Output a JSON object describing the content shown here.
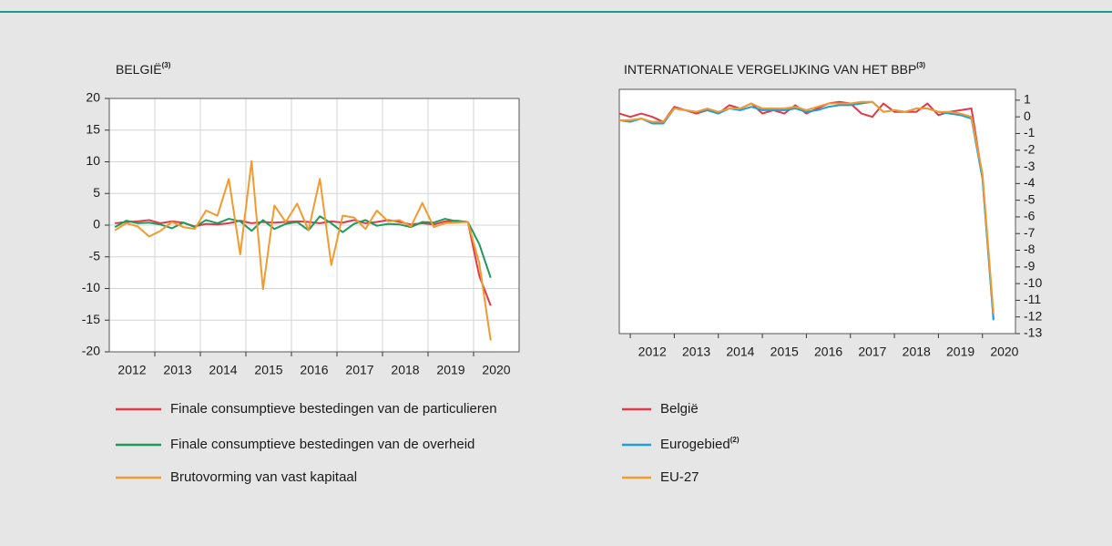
{
  "chart_data": [
    {
      "type": "line",
      "title": "BELGIË",
      "title_sup": "(3)",
      "y_axis_side": "left",
      "grid": true,
      "xlim": [
        2012,
        2021
      ],
      "xticks": [
        2012,
        2013,
        2014,
        2015,
        2016,
        2017,
        2018,
        2019,
        2020
      ],
      "ylim": [
        -20,
        20
      ],
      "yticks": [
        -20,
        -15,
        -10,
        -5,
        0,
        5,
        10,
        15,
        20
      ],
      "x": [
        2012.125,
        2012.375,
        2012.625,
        2012.875,
        2013.125,
        2013.375,
        2013.625,
        2013.875,
        2014.125,
        2014.375,
        2014.625,
        2014.875,
        2015.125,
        2015.375,
        2015.625,
        2015.875,
        2016.125,
        2016.375,
        2016.625,
        2016.875,
        2017.125,
        2017.375,
        2017.625,
        2017.875,
        2018.125,
        2018.375,
        2018.625,
        2018.875,
        2019.125,
        2019.375,
        2019.625,
        2019.875,
        2020.125,
        2020.375
      ],
      "series": [
        {
          "name": "Finale consumptieve bestedingen van de particulieren",
          "color": "#e03a48",
          "values": [
            0.3,
            0.5,
            0.6,
            0.8,
            0.3,
            0.6,
            0.4,
            -0.2,
            0.2,
            0.1,
            0.3,
            0.7,
            0.3,
            0.5,
            0.4,
            0.5,
            0.6,
            0.5,
            0.3,
            0.6,
            0.4,
            0.8,
            0.3,
            0.5,
            0.8,
            0.5,
            0.1,
            0.3,
            0.1,
            0.6,
            0.7,
            0.5,
            -8,
            -12.7
          ]
        },
        {
          "name": "Finale consumptieve bestedingen van de overheid",
          "color": "#1e9a5a",
          "values": [
            -0.3,
            0.7,
            0.3,
            0.4,
            0.1,
            -0.5,
            0.4,
            -0.3,
            0.8,
            0.3,
            1.0,
            0.6,
            -0.9,
            0.8,
            -0.6,
            0.2,
            0.5,
            -0.8,
            1.4,
            0.3,
            -1.1,
            0.2,
            0.8,
            -0.1,
            0.2,
            0.1,
            -0.3,
            0.5,
            0.4,
            1.0,
            0.6,
            0.5,
            -3,
            -8.3
          ]
        },
        {
          "name": "Brutovorming van vast kapitaal",
          "color": "#f39a2e",
          "values": [
            -0.8,
            0.3,
            -0.2,
            -1.8,
            -0.9,
            0.5,
            -0.3,
            -0.6,
            2.3,
            1.5,
            7.3,
            -4.6,
            10.1,
            -10.1,
            3.1,
            0.5,
            3.4,
            -0.8,
            7.3,
            -6.3,
            1.5,
            1.2,
            -0.6,
            2.3,
            0.6,
            0.8,
            -0.2,
            3.5,
            -0.3,
            0.3,
            0.4,
            0.5,
            -6,
            -18.2
          ]
        }
      ]
    },
    {
      "type": "line",
      "title": "INTERNATIONALE VERGELIJKING VAN HET BBP",
      "title_sup": "(3)",
      "y_axis_side": "right",
      "grid": false,
      "xlim": [
        2011.75,
        2020.75
      ],
      "xticks": [
        2012,
        2013,
        2014,
        2015,
        2016,
        2017,
        2018,
        2019,
        2020
      ],
      "ylim": [
        -13,
        1.65
      ],
      "yticks": [
        -13,
        -12,
        -11,
        -10,
        -9,
        -8,
        -7,
        -6,
        -5,
        -4,
        -3,
        -2,
        -1,
        0,
        1
      ],
      "x": [
        2011.75,
        2012,
        2012.25,
        2012.5,
        2012.75,
        2013,
        2013.25,
        2013.5,
        2013.75,
        2014,
        2014.25,
        2014.5,
        2014.75,
        2015,
        2015.25,
        2015.5,
        2015.75,
        2016,
        2016.25,
        2016.5,
        2016.75,
        2017,
        2017.25,
        2017.5,
        2017.75,
        2018,
        2018.25,
        2018.5,
        2018.75,
        2019,
        2019.25,
        2019.5,
        2019.75,
        2020,
        2020.25
      ],
      "series": [
        {
          "name": "België",
          "color": "#e03a48",
          "values": [
            0.2,
            0.0,
            0.2,
            0.0,
            -0.3,
            0.6,
            0.4,
            0.2,
            0.4,
            0.2,
            0.7,
            0.5,
            0.8,
            0.2,
            0.4,
            0.2,
            0.7,
            0.2,
            0.5,
            0.8,
            0.9,
            0.8,
            0.2,
            0.0,
            0.8,
            0.3,
            0.3,
            0.3,
            0.8,
            0.1,
            0.3,
            0.4,
            0.5,
            -3.6,
            -12.1
          ]
        },
        {
          "name": "Eurogebied",
          "name_sup": "(2)",
          "color": "#1f9fd8",
          "values": [
            -0.2,
            -0.3,
            -0.1,
            -0.4,
            -0.4,
            0.5,
            0.4,
            0.3,
            0.4,
            0.2,
            0.5,
            0.4,
            0.6,
            0.4,
            0.4,
            0.4,
            0.5,
            0.3,
            0.4,
            0.6,
            0.7,
            0.7,
            0.8,
            0.9,
            0.3,
            0.4,
            0.3,
            0.5,
            0.5,
            0.3,
            0.2,
            0.1,
            -0.1,
            -3.7,
            -12.2
          ]
        },
        {
          "name": "EU-27",
          "color": "#f39a2e",
          "values": [
            -0.2,
            -0.2,
            -0.1,
            -0.3,
            -0.3,
            0.5,
            0.4,
            0.3,
            0.5,
            0.3,
            0.5,
            0.5,
            0.8,
            0.5,
            0.5,
            0.5,
            0.6,
            0.4,
            0.6,
            0.8,
            0.8,
            0.8,
            0.9,
            0.9,
            0.3,
            0.4,
            0.3,
            0.5,
            0.5,
            0.3,
            0.3,
            0.2,
            0.0,
            -3.4,
            -11.8
          ]
        }
      ]
    }
  ]
}
